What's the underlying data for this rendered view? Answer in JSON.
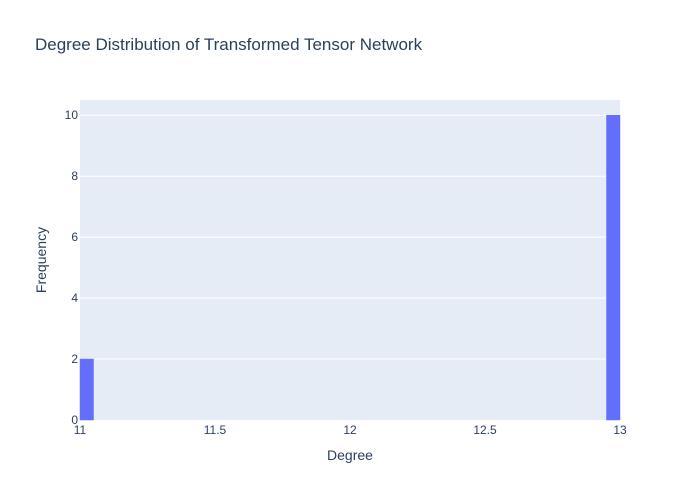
{
  "chart_data": {
    "type": "bar",
    "title": "Degree Distribution of Transformed Tensor Network",
    "xlabel": "Degree",
    "ylabel": "Frequency",
    "xlim": [
      11,
      13
    ],
    "ylim": [
      0,
      10.5
    ],
    "x_ticks": [
      11,
      11.5,
      12,
      12.5,
      13
    ],
    "x_tick_labels": [
      "11",
      "11.5",
      "12",
      "12.5",
      "13"
    ],
    "y_ticks": [
      0,
      2,
      4,
      6,
      8,
      10
    ],
    "y_tick_labels": [
      "0",
      "2",
      "4",
      "6",
      "8",
      "10"
    ],
    "bin_width": 0.05,
    "bins": [
      {
        "x0": 11.0,
        "x1": 11.05,
        "count": 2
      },
      {
        "x0": 12.95,
        "x1": 13.0,
        "count": 10
      }
    ],
    "grid": true,
    "legend": "none"
  },
  "colors": {
    "plot_background": "#e5ecf6",
    "bar": "#636efa",
    "grid": "#ffffff",
    "text": "#2a3f5f"
  }
}
